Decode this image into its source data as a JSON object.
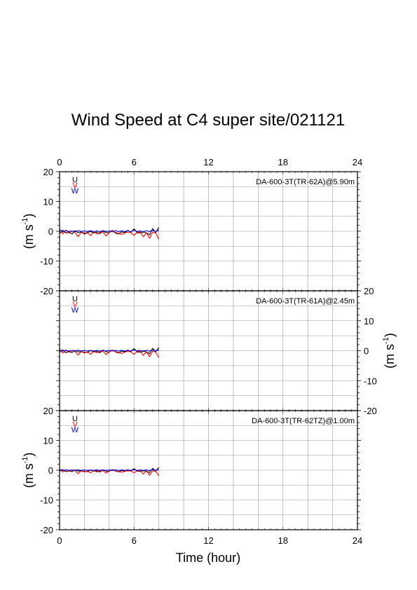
{
  "chart_data": {
    "type": "line",
    "title": "Wind Speed at C4 super site/021121",
    "xlabel": "Time (hour)",
    "ylabel": "(m s-1)",
    "ylabel_main": "(m s",
    "ylabel_sup": "-1",
    "ylabel_close": ")",
    "xlim": [
      0,
      24
    ],
    "x_ticks": [
      "0",
      "6",
      "12",
      "18",
      "24"
    ],
    "ylim": [
      -20,
      20
    ],
    "y_ticks": [
      "-20",
      "-10",
      "0",
      "10",
      "20"
    ],
    "grid": true,
    "legend": {
      "placement": "top-left",
      "entries": [
        {
          "name": "U",
          "color": "#000000"
        },
        {
          "name": "V",
          "color": "#ff0000"
        },
        {
          "name": "W",
          "color": "#0000cc"
        }
      ]
    },
    "panels": [
      {
        "label": "DA-600-3T(TR-62A)@5.90m",
        "series": [
          {
            "name": "U",
            "color": "#000000",
            "x": [
              0,
              0.25,
              0.5,
              0.75,
              1,
              1.25,
              1.5,
              1.75,
              2,
              2.25,
              2.5,
              2.75,
              3,
              3.25,
              3.5,
              3.75,
              4,
              4.25,
              4.5,
              4.75,
              5,
              5.25,
              5.5,
              5.75,
              6,
              6.25,
              6.5,
              6.75,
              7,
              7.25,
              7.5,
              7.75,
              8
            ],
            "values": [
              -0.8,
              0.4,
              -0.6,
              -0.3,
              -0.9,
              0.2,
              -0.5,
              -0.2,
              -0.7,
              -0.4,
              -0.1,
              -0.6,
              -0.3,
              -0.8,
              0.1,
              -0.5,
              -0.4,
              0.3,
              -0.6,
              -0.9,
              -0.2,
              -0.5,
              0.3,
              -0.4,
              0.8,
              -0.5,
              -0.6,
              -0.3,
              -0.5,
              -1.2,
              0.9,
              -0.4,
              1.3
            ]
          },
          {
            "name": "V",
            "color": "#ff0000",
            "x": [
              0,
              0.25,
              0.5,
              0.75,
              1,
              1.25,
              1.5,
              1.75,
              2,
              2.25,
              2.5,
              2.75,
              3,
              3.25,
              3.5,
              3.75,
              4,
              4.25,
              4.5,
              4.75,
              5,
              5.25,
              5.5,
              5.75,
              6,
              6.25,
              6.5,
              6.75,
              7,
              7.25,
              7.5,
              7.75,
              8
            ],
            "values": [
              0.8,
              -0.9,
              0.4,
              -0.6,
              0.1,
              -0.4,
              -1.8,
              -0.3,
              -1.0,
              -0.5,
              -1.5,
              -0.2,
              -0.9,
              -0.4,
              -0.3,
              -1.6,
              -0.5,
              0.2,
              -0.4,
              -0.7,
              -1.1,
              -0.6,
              -0.3,
              -0.5,
              -1.4,
              -0.4,
              -0.2,
              -1.9,
              -0.5,
              -2.4,
              -0.3,
              -0.6,
              -2.7
            ]
          },
          {
            "name": "W",
            "color": "#0000cc",
            "x": [
              0,
              0.25,
              0.5,
              0.75,
              1,
              1.25,
              1.5,
              1.75,
              2,
              2.25,
              2.5,
              2.75,
              3,
              3.25,
              3.5,
              3.75,
              4,
              4.25,
              4.5,
              4.75,
              5,
              5.25,
              5.5,
              5.75,
              6,
              6.25,
              6.5,
              6.75,
              7,
              7.25,
              7.5,
              7.75,
              8
            ],
            "values": [
              0.3,
              -0.2,
              0.2,
              -0.1,
              0.1,
              -0.2,
              0.2,
              -0.1,
              0.1,
              -0.1,
              0.2,
              -0.2,
              0.1,
              -0.1,
              0.2,
              -0.1,
              0.1,
              -0.2,
              0.2,
              -0.1,
              0.1,
              -0.1,
              0.2,
              -0.2,
              0.4,
              -0.1,
              0.1,
              -0.2,
              0.2,
              -0.1,
              0.3,
              -0.2,
              0.4
            ]
          }
        ]
      },
      {
        "label": "DA-600-3T(TR-61A)@2.45m",
        "series": [
          {
            "name": "U",
            "color": "#000000",
            "x": [
              0,
              0.25,
              0.5,
              0.75,
              1,
              1.25,
              1.5,
              1.75,
              2,
              2.25,
              2.5,
              2.75,
              3,
              3.25,
              3.5,
              3.75,
              4,
              4.25,
              4.5,
              4.75,
              5,
              5.25,
              5.5,
              5.75,
              6,
              6.25,
              6.5,
              6.75,
              7,
              7.25,
              7.5,
              7.75,
              8
            ],
            "values": [
              -0.5,
              0.3,
              -0.7,
              -0.2,
              -0.6,
              0.1,
              -0.4,
              -0.3,
              -0.5,
              -0.6,
              0.1,
              -0.4,
              -0.2,
              -0.7,
              0.2,
              -0.3,
              -0.5,
              0.2,
              -0.4,
              -0.8,
              -0.1,
              -0.4,
              0.2,
              -0.3,
              0.7,
              -0.4,
              -0.5,
              -0.2,
              -0.4,
              -1.0,
              0.8,
              -0.3,
              1.1
            ]
          },
          {
            "name": "V",
            "color": "#ff0000",
            "x": [
              0,
              0.25,
              0.5,
              0.75,
              1,
              1.25,
              1.5,
              1.75,
              2,
              2.25,
              2.5,
              2.75,
              3,
              3.25,
              3.5,
              3.75,
              4,
              4.25,
              4.5,
              4.75,
              5,
              5.25,
              5.5,
              5.75,
              6,
              6.25,
              6.5,
              6.75,
              7,
              7.25,
              7.5,
              7.75,
              8
            ],
            "values": [
              0.6,
              -0.8,
              0.3,
              -0.5,
              0.1,
              -0.3,
              -1.5,
              -0.2,
              -0.8,
              -0.4,
              -1.2,
              -0.2,
              -0.7,
              -0.3,
              -0.2,
              -1.3,
              -0.4,
              0.2,
              -0.3,
              -0.6,
              -0.9,
              -0.5,
              -0.2,
              -0.4,
              -1.2,
              -0.3,
              -0.2,
              -1.6,
              -0.4,
              -2.0,
              -0.2,
              -0.5,
              -2.3
            ]
          },
          {
            "name": "W",
            "color": "#0000cc",
            "x": [
              0,
              0.25,
              0.5,
              0.75,
              1,
              1.25,
              1.5,
              1.75,
              2,
              2.25,
              2.5,
              2.75,
              3,
              3.25,
              3.5,
              3.75,
              4,
              4.25,
              4.5,
              4.75,
              5,
              5.25,
              5.5,
              5.75,
              6,
              6.25,
              6.5,
              6.75,
              7,
              7.25,
              7.5,
              7.75,
              8
            ],
            "values": [
              0.2,
              -0.1,
              0.1,
              -0.1,
              0.1,
              -0.1,
              0.2,
              -0.1,
              0.1,
              -0.1,
              0.1,
              -0.1,
              0.1,
              -0.1,
              0.1,
              -0.1,
              0.1,
              -0.1,
              0.1,
              -0.1,
              0.1,
              -0.1,
              0.1,
              -0.1,
              0.3,
              -0.1,
              0.1,
              -0.1,
              0.1,
              -0.1,
              0.2,
              -0.1,
              0.3
            ]
          }
        ]
      },
      {
        "label": "DA-600-3T(TR-62TZ)@1.00m",
        "series": [
          {
            "name": "U",
            "color": "#000000",
            "x": [
              0,
              0.25,
              0.5,
              0.75,
              1,
              1.25,
              1.5,
              1.75,
              2,
              2.25,
              2.5,
              2.75,
              3,
              3.25,
              3.5,
              3.75,
              4,
              4.25,
              4.5,
              4.75,
              5,
              5.25,
              5.5,
              5.75,
              6,
              6.25,
              6.5,
              6.75,
              7,
              7.25,
              7.5,
              7.75,
              8
            ],
            "values": [
              -0.4,
              0.2,
              -0.5,
              -0.2,
              -0.5,
              0.1,
              -0.3,
              -0.2,
              -0.4,
              -0.5,
              0.1,
              -0.3,
              -0.2,
              -0.6,
              0.1,
              -0.3,
              -0.4,
              0.2,
              -0.3,
              -0.6,
              -0.1,
              -0.3,
              0.1,
              -0.2,
              0.5,
              -0.3,
              -0.4,
              -0.2,
              -0.3,
              -0.8,
              0.6,
              -0.2,
              0.9
            ]
          },
          {
            "name": "V",
            "color": "#ff0000",
            "x": [
              0,
              0.25,
              0.5,
              0.75,
              1,
              1.25,
              1.5,
              1.75,
              2,
              2.25,
              2.5,
              2.75,
              3,
              3.25,
              3.5,
              3.75,
              4,
              4.25,
              4.5,
              4.75,
              5,
              5.25,
              5.5,
              5.75,
              6,
              6.25,
              6.5,
              6.75,
              7,
              7.25,
              7.5,
              7.75,
              8
            ],
            "values": [
              0.5,
              -0.6,
              0.2,
              -0.4,
              0.1,
              -0.2,
              -1.2,
              -0.2,
              -0.6,
              -0.3,
              -0.9,
              -0.1,
              -0.6,
              -0.2,
              -0.2,
              -1.0,
              -0.3,
              0.1,
              -0.2,
              -0.5,
              -0.7,
              -0.4,
              -0.2,
              -0.3,
              -0.9,
              -0.2,
              -0.2,
              -1.3,
              -0.3,
              -1.7,
              -0.2,
              -0.4,
              -1.9
            ]
          },
          {
            "name": "W",
            "color": "#0000cc",
            "x": [
              0,
              0.25,
              0.5,
              0.75,
              1,
              1.25,
              1.5,
              1.75,
              2,
              2.25,
              2.5,
              2.75,
              3,
              3.25,
              3.5,
              3.75,
              4,
              4.25,
              4.5,
              4.75,
              5,
              5.25,
              5.5,
              5.75,
              6,
              6.25,
              6.5,
              6.75,
              7,
              7.25,
              7.5,
              7.75,
              8
            ],
            "values": [
              0.2,
              -0.1,
              0.1,
              -0.1,
              0.1,
              -0.1,
              0.1,
              -0.1,
              0.1,
              -0.1,
              0.1,
              -0.1,
              0.1,
              -0.1,
              0.1,
              -0.1,
              0.1,
              -0.1,
              0.1,
              -0.1,
              0.1,
              -0.1,
              0.1,
              -0.1,
              0.2,
              -0.1,
              0.1,
              -0.1,
              0.1,
              -0.1,
              0.2,
              -0.1,
              0.2
            ]
          }
        ]
      }
    ]
  }
}
